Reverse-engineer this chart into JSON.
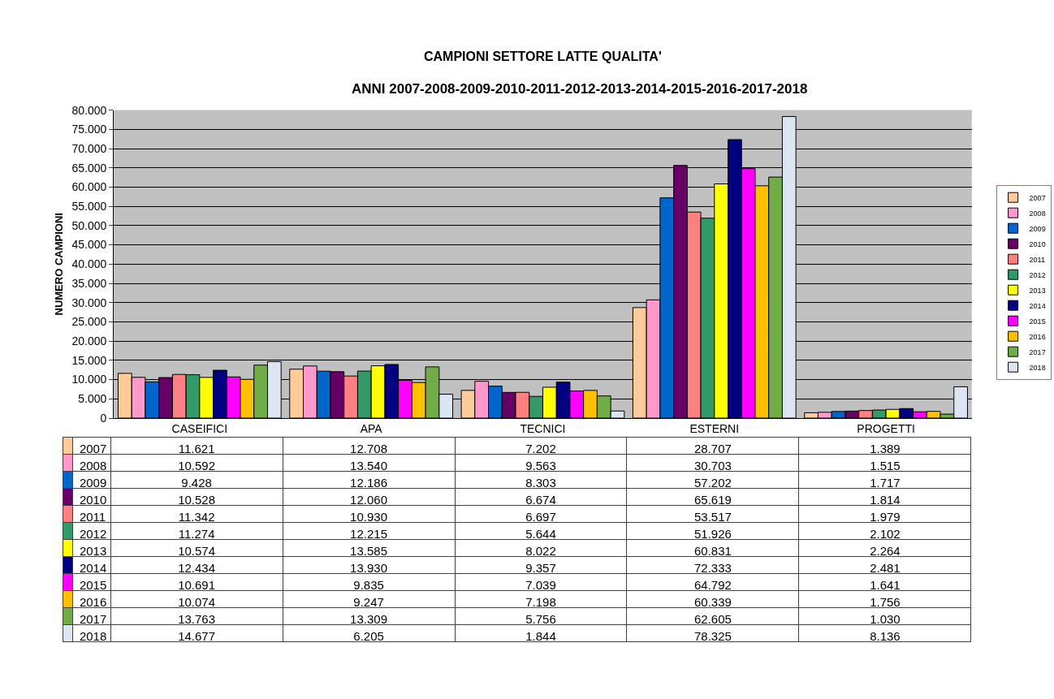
{
  "chart_data": {
    "type": "bar",
    "title": "CAMPIONI SETTORE LATTE QUALITA'",
    "subtitle": "ANNI 2007-2008-2009-2010-2011-2012-2013-2014-2015-2016-2017-2018",
    "ylabel": "NUMERO CAMPIONI",
    "categories": [
      "CASEIFICI",
      "APA",
      "TECNICI",
      "ESTERNI",
      "PROGETTI"
    ],
    "ylim": [
      0,
      80000
    ],
    "yticks": [
      0,
      {
        "value": 5000,
        "label": "5.000"
      },
      {
        "value": 10000,
        "label": "10.000"
      },
      {
        "value": 15000,
        "label": "15.000"
      },
      {
        "value": 20000,
        "label": "20.000"
      },
      {
        "value": 25000,
        "label": "25.000"
      },
      {
        "value": 30000,
        "label": "30.000"
      },
      {
        "value": 35000,
        "label": "35.000"
      },
      {
        "value": 40000,
        "label": "40.000"
      },
      {
        "value": 45000,
        "label": "45.000"
      },
      {
        "value": 50000,
        "label": "50.000"
      },
      {
        "value": 55000,
        "label": "55.000"
      },
      {
        "value": 60000,
        "label": "60.000"
      },
      {
        "value": 65000,
        "label": "65.000"
      },
      {
        "value": 70000,
        "label": "70.000"
      },
      {
        "value": 75000,
        "label": "75.000"
      },
      {
        "value": 80000,
        "label": "80.000"
      }
    ],
    "grid": "y",
    "legend": "right",
    "series": [
      {
        "name": "2007",
        "color": "#ffcc99",
        "values": [
          11621,
          12708,
          7202,
          28707,
          1389
        ],
        "value_labels": [
          "11.621",
          "12.708",
          "7.202",
          "28.707",
          "1.389"
        ]
      },
      {
        "name": "2008",
        "color": "#ff99cc",
        "values": [
          10592,
          13540,
          9563,
          30703,
          1515
        ],
        "value_labels": [
          "10.592",
          "13.540",
          "9.563",
          "30.703",
          "1.515"
        ]
      },
      {
        "name": "2009",
        "color": "#0066cc",
        "values": [
          9428,
          12186,
          8303,
          57202,
          1717
        ],
        "value_labels": [
          "9.428",
          "12.186",
          "8.303",
          "57.202",
          "1.717"
        ]
      },
      {
        "name": "2010",
        "color": "#660066",
        "values": [
          10528,
          12060,
          6674,
          65619,
          1814
        ],
        "value_labels": [
          "10.528",
          "12.060",
          "6.674",
          "65.619",
          "1.814"
        ]
      },
      {
        "name": "2011",
        "color": "#ff8080",
        "values": [
          11342,
          10930,
          6697,
          53517,
          1979
        ],
        "value_labels": [
          "11.342",
          "10.930",
          "6.697",
          "53.517",
          "1.979"
        ]
      },
      {
        "name": "2012",
        "color": "#339966",
        "values": [
          11274,
          12215,
          5644,
          51926,
          2102
        ],
        "value_labels": [
          "11.274",
          "12.215",
          "5.644",
          "51.926",
          "2.102"
        ]
      },
      {
        "name": "2013",
        "color": "#ffff00",
        "values": [
          10574,
          13585,
          8022,
          60831,
          2264
        ],
        "value_labels": [
          "10.574",
          "13.585",
          "8.022",
          "60.831",
          "2.264"
        ]
      },
      {
        "name": "2014",
        "color": "#000080",
        "values": [
          12434,
          13930,
          9357,
          72333,
          2481
        ],
        "value_labels": [
          "12.434",
          "13.930",
          "9.357",
          "72.333",
          "2.481"
        ]
      },
      {
        "name": "2015",
        "color": "#ff00ff",
        "values": [
          10691,
          9835,
          7039,
          64792,
          1641
        ],
        "value_labels": [
          "10.691",
          "9.835",
          "7.039",
          "64.792",
          "1.641"
        ]
      },
      {
        "name": "2016",
        "color": "#ffc000",
        "values": [
          10074,
          9247,
          7198,
          60339,
          1756
        ],
        "value_labels": [
          "10.074",
          "9.247",
          "7.198",
          "60.339",
          "1.756"
        ]
      },
      {
        "name": "2017",
        "color": "#70ad47",
        "values": [
          13763,
          13309,
          5756,
          62605,
          1030
        ],
        "value_labels": [
          "13.763",
          "13.309",
          "5.756",
          "62.605",
          "1.030"
        ]
      },
      {
        "name": "2018",
        "color": "#dce6f2",
        "values": [
          14677,
          6205,
          1844,
          78325,
          8136
        ],
        "value_labels": [
          "14.677",
          "6.205",
          "1.844",
          "78.325",
          "8.136"
        ]
      }
    ]
  }
}
